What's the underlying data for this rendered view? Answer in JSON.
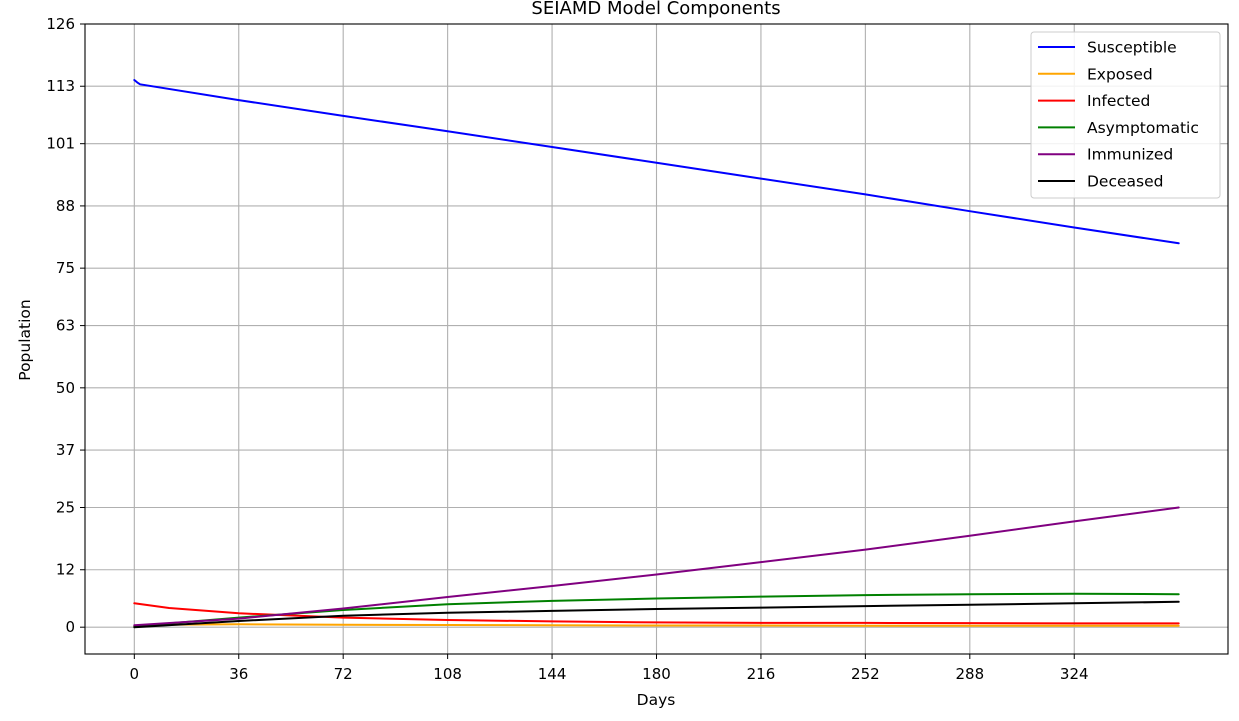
{
  "chart_data": {
    "type": "line",
    "title": "SEIAMD Model Components",
    "xlabel": "Days",
    "ylabel": "Population",
    "xlim": [
      -17,
      377
    ],
    "ylim": [
      -5.6,
      126
    ],
    "xticks": [
      0,
      36,
      72,
      108,
      144,
      180,
      216,
      252,
      288,
      324
    ],
    "yticks": [
      0,
      12,
      25,
      37,
      50,
      63,
      75,
      88,
      101,
      113,
      126
    ],
    "grid": true,
    "legend": "top-right",
    "series": [
      {
        "name": "Susceptible",
        "color": "#0000ff",
        "x": [
          0,
          1,
          2,
          36,
          72,
          108,
          144,
          180,
          216,
          252,
          288,
          324,
          360
        ],
        "y": [
          114.3,
          113.8,
          113.4,
          110.1,
          106.8,
          103.6,
          100.3,
          97.0,
          93.7,
          90.4,
          86.9,
          83.5,
          80.2
        ]
      },
      {
        "name": "Exposed",
        "color": "#ffa500",
        "x": [
          0,
          10,
          36,
          72,
          108,
          144,
          180,
          216,
          252,
          288,
          324,
          360
        ],
        "y": [
          0.2,
          0.5,
          0.6,
          0.5,
          0.45,
          0.4,
          0.35,
          0.35,
          0.3,
          0.3,
          0.3,
          0.3
        ]
      },
      {
        "name": "Infected",
        "color": "#ff0000",
        "x": [
          0,
          12,
          36,
          72,
          108,
          144,
          180,
          216,
          252,
          288,
          324,
          360
        ],
        "y": [
          5.0,
          4.0,
          2.9,
          2.0,
          1.5,
          1.2,
          1.0,
          0.9,
          0.9,
          0.85,
          0.8,
          0.8
        ]
      },
      {
        "name": "Asymptomatic",
        "color": "#008000",
        "x": [
          0,
          36,
          72,
          108,
          144,
          180,
          216,
          252,
          288,
          324,
          360
        ],
        "y": [
          0.2,
          2.0,
          3.6,
          4.8,
          5.5,
          6.0,
          6.4,
          6.7,
          6.9,
          7.0,
          6.9
        ]
      },
      {
        "name": "Immunized",
        "color": "#800080",
        "x": [
          0,
          36,
          72,
          108,
          144,
          180,
          216,
          252,
          288,
          324,
          360
        ],
        "y": [
          0.4,
          1.8,
          3.9,
          6.3,
          8.6,
          11.0,
          13.6,
          16.2,
          19.1,
          22.1,
          25.0
        ]
      },
      {
        "name": "Deceased",
        "color": "#000000",
        "x": [
          0,
          36,
          72,
          108,
          144,
          180,
          216,
          252,
          288,
          324,
          360
        ],
        "y": [
          0.0,
          1.3,
          2.4,
          3.0,
          3.4,
          3.8,
          4.1,
          4.4,
          4.7,
          5.0,
          5.3
        ]
      }
    ]
  }
}
